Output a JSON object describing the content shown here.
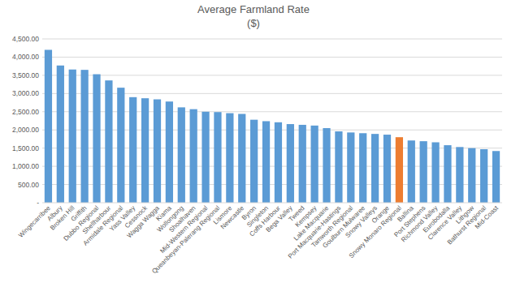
{
  "chart_data": {
    "type": "bar",
    "title": "Average Farmland Rate",
    "subtitle": "($)",
    "categories": [
      "Wingecarribee",
      "Albury",
      "Broken Hill",
      "Griffith",
      "Dubbo Regional",
      "Shellharbour",
      "Armidale Regional",
      "Yass Valley",
      "Cessnock",
      "Wagga Wagga",
      "Kiama",
      "Wollongong",
      "Shoalhaven",
      "Mid-Western Regional",
      "Queanbeyan-Palerang Regional",
      "Lismore",
      "Newcastle",
      "Byron",
      "Singleton",
      "Coffs Harbour",
      "Bega Valley",
      "Tweed",
      "Kempsey",
      "Lake Macquarie",
      "Port Macquarie-Hastings",
      "Tamworth Regional",
      "Goulburn Mulwaree",
      "Snowy Valleys",
      "Orange",
      "Snowy Monaro Regional",
      "Ballina",
      "Port Stephens",
      "Richmond Valley",
      "Eurobodalla",
      "Clarence Valley",
      "Lithgow",
      "Bathurst Regional",
      "Mid-Coast"
    ],
    "values": [
      4200,
      3770,
      3660,
      3650,
      3530,
      3360,
      3160,
      2900,
      2870,
      2840,
      2780,
      2620,
      2570,
      2500,
      2490,
      2460,
      2440,
      2280,
      2240,
      2210,
      2160,
      2140,
      2120,
      2050,
      1960,
      1930,
      1910,
      1890,
      1870,
      1800,
      1710,
      1690,
      1660,
      1580,
      1530,
      1500,
      1470,
      1420
    ],
    "colors": [
      "#5b9bd5",
      "#5b9bd5",
      "#5b9bd5",
      "#5b9bd5",
      "#5b9bd5",
      "#5b9bd5",
      "#5b9bd5",
      "#5b9bd5",
      "#5b9bd5",
      "#5b9bd5",
      "#5b9bd5",
      "#5b9bd5",
      "#5b9bd5",
      "#5b9bd5",
      "#5b9bd5",
      "#5b9bd5",
      "#5b9bd5",
      "#5b9bd5",
      "#5b9bd5",
      "#5b9bd5",
      "#5b9bd5",
      "#5b9bd5",
      "#5b9bd5",
      "#5b9bd5",
      "#5b9bd5",
      "#5b9bd5",
      "#5b9bd5",
      "#5b9bd5",
      "#5b9bd5",
      "#ed7d31",
      "#5b9bd5",
      "#5b9bd5",
      "#5b9bd5",
      "#5b9bd5",
      "#5b9bd5",
      "#5b9bd5",
      "#5b9bd5",
      "#5b9bd5"
    ],
    "ylim": [
      0,
      4500
    ],
    "yticks": [
      {
        "value": 0,
        "label": "-"
      },
      {
        "value": 500,
        "label": "500.00"
      },
      {
        "value": 1000,
        "label": "1,000.00"
      },
      {
        "value": 1500,
        "label": "1,500.00"
      },
      {
        "value": 2000,
        "label": "2,000.00"
      },
      {
        "value": 2500,
        "label": "2,500.00"
      },
      {
        "value": 3000,
        "label": "3,000.00"
      },
      {
        "value": 3500,
        "label": "3,500.00"
      },
      {
        "value": 4000,
        "label": "4,000.00"
      },
      {
        "value": 4500,
        "label": "4,500.00"
      }
    ],
    "grid": true
  }
}
